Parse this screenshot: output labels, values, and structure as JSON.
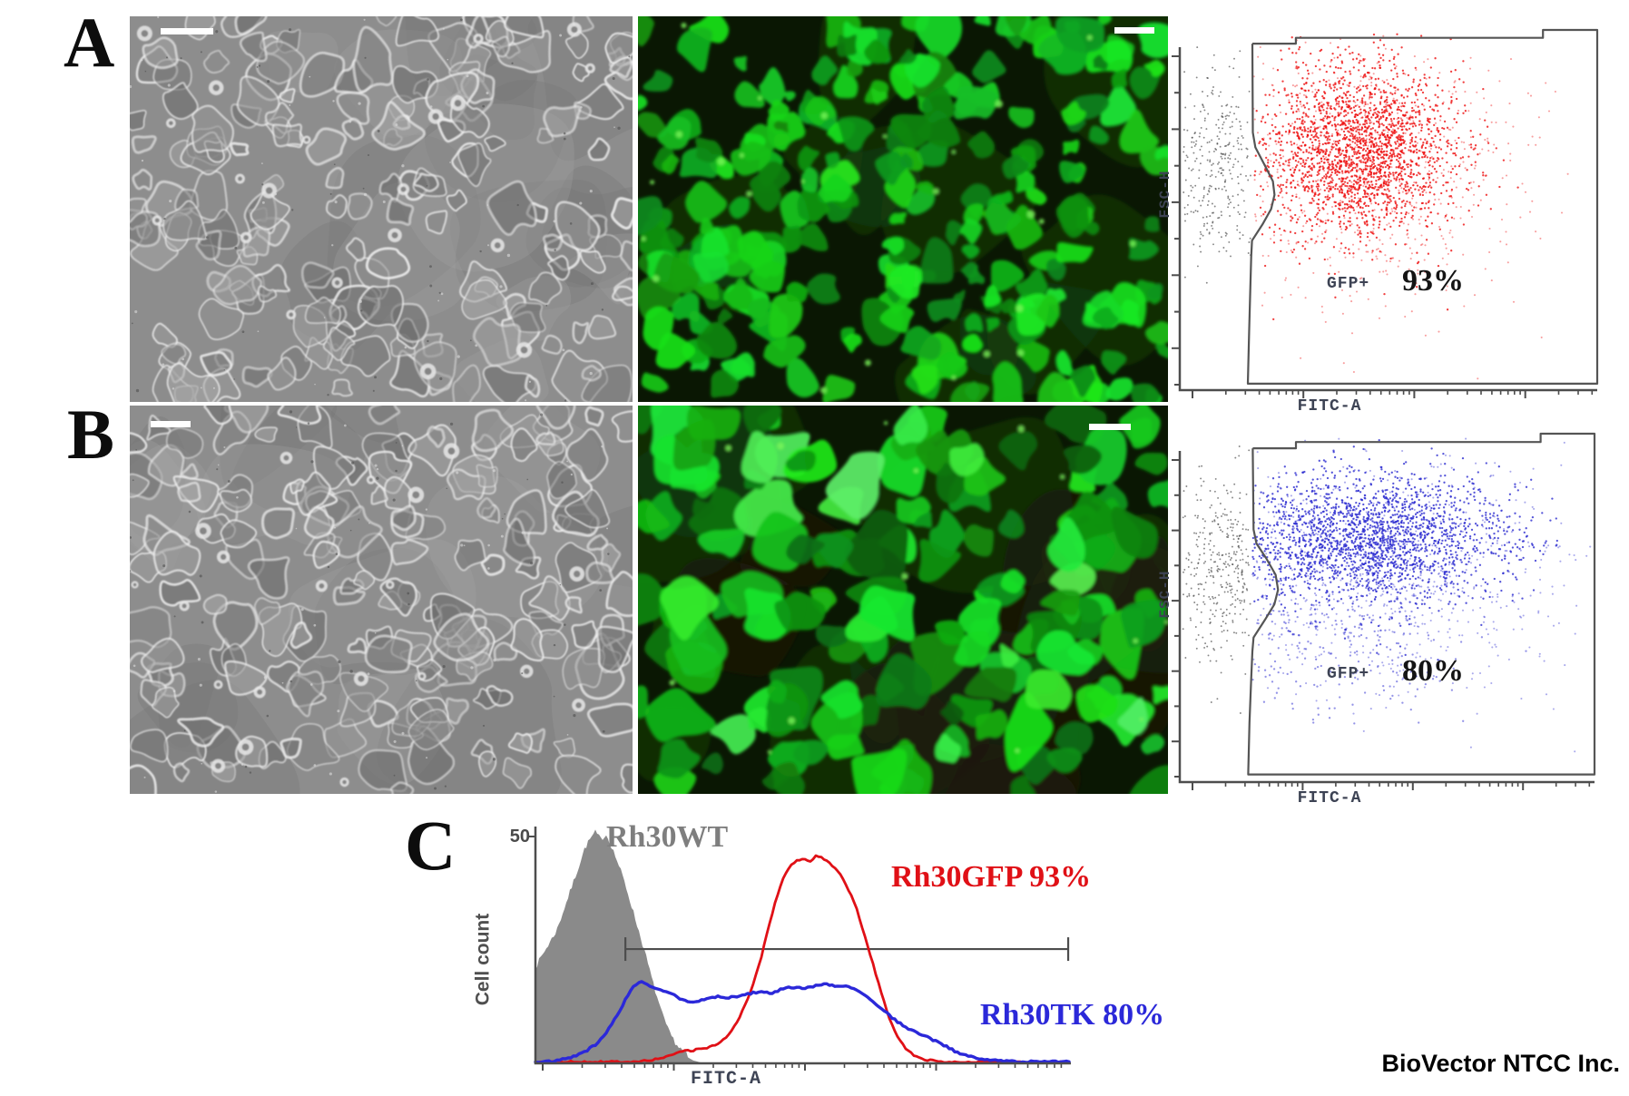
{
  "figure": {
    "panel_a_label": "A",
    "panel_b_label": "B",
    "panel_c_label": "C",
    "watermark": "BioVector NTCC Inc."
  },
  "microscopy": [
    {
      "panel": "A",
      "type": "phase-contrast",
      "scale_bar": true,
      "seed": 11
    },
    {
      "panel": "A",
      "type": "gfp-fluorescence",
      "density": "high",
      "scale_bar": true,
      "seed": 21
    },
    {
      "panel": "B",
      "type": "phase-contrast",
      "scale_bar": true,
      "seed": 31
    },
    {
      "panel": "B",
      "type": "gfp-fluorescence",
      "density": "medium",
      "scale_bar": true,
      "seed": 41
    }
  ],
  "flow": {
    "y_label": "FSC-H",
    "x_label": "FITC-A",
    "gate_label": "GFP+",
    "plots": [
      {
        "panel": "A",
        "percent": "93%"
      },
      {
        "panel": "B",
        "percent": "80%"
      }
    ]
  },
  "histogram": {
    "y_top_tick": "50",
    "y_label": "Cell count",
    "x_label": "FITC-A",
    "legend": [
      {
        "text": "Rh30WT",
        "color": "#7e7e7e"
      },
      {
        "text": "Rh30GFP 93%",
        "color": "#e01016"
      },
      {
        "text": "Rh30TK 80%",
        "color": "#2b28d9"
      }
    ]
  },
  "chart_data": [
    {
      "type": "scatter",
      "panel": "A",
      "xlabel": "FITC-A",
      "ylabel": "FSC-H",
      "x_scale": "log",
      "gate": {
        "label": "GFP+",
        "percent": 93
      },
      "gate_path": [
        [
          0.174,
          0.038
        ],
        [
          0.278,
          0.038
        ],
        [
          0.278,
          0.022
        ],
        [
          0.87,
          0.022
        ],
        [
          0.87,
          0.0
        ],
        [
          1.0,
          0.0
        ],
        [
          1.0,
          0.982
        ],
        [
          0.163,
          0.982
        ],
        [
          0.166,
          0.84
        ],
        [
          0.169,
          0.72
        ],
        [
          0.171,
          0.63
        ],
        [
          0.173,
          0.585
        ],
        [
          0.198,
          0.54
        ],
        [
          0.219,
          0.497
        ],
        [
          0.227,
          0.458
        ],
        [
          0.223,
          0.42
        ],
        [
          0.202,
          0.372
        ],
        [
          0.181,
          0.326
        ],
        [
          0.175,
          0.285
        ],
        [
          0.174,
          0.038
        ]
      ],
      "populations": [
        {
          "name": "ungated",
          "color": "#474747",
          "center": [
            0.085,
            0.38
          ],
          "spread": [
            0.06,
            0.14
          ],
          "n": 380
        },
        {
          "name": "gfp-positive-sparse",
          "color": "#ee0f0f",
          "center": [
            0.46,
            0.38
          ],
          "spread": [
            0.19,
            0.2
          ],
          "n": 700
        },
        {
          "name": "gfp-positive",
          "color": "#ee0f0f",
          "center": [
            0.43,
            0.33
          ],
          "spread": [
            0.115,
            0.12
          ],
          "n": 2200
        }
      ]
    },
    {
      "type": "scatter",
      "panel": "B",
      "xlabel": "FITC-A",
      "ylabel": "FSC-H",
      "x_scale": "log",
      "gate": {
        "label": "GFP+",
        "percent": 80
      },
      "gate_path": [
        [
          0.176,
          0.042
        ],
        [
          0.28,
          0.042
        ],
        [
          0.28,
          0.024
        ],
        [
          0.87,
          0.024
        ],
        [
          0.87,
          0.0
        ],
        [
          1.0,
          0.0
        ],
        [
          1.0,
          0.978
        ],
        [
          0.165,
          0.978
        ],
        [
          0.168,
          0.83
        ],
        [
          0.172,
          0.71
        ],
        [
          0.175,
          0.625
        ],
        [
          0.178,
          0.585
        ],
        [
          0.205,
          0.535
        ],
        [
          0.228,
          0.49
        ],
        [
          0.237,
          0.448
        ],
        [
          0.231,
          0.405
        ],
        [
          0.208,
          0.357
        ],
        [
          0.185,
          0.315
        ],
        [
          0.178,
          0.275
        ],
        [
          0.176,
          0.042
        ]
      ],
      "populations": [
        {
          "name": "ungated",
          "color": "#474747",
          "center": [
            0.1,
            0.4
          ],
          "spread": [
            0.065,
            0.12
          ],
          "n": 420
        },
        {
          "name": "gfp-positive-sparse",
          "color": "#2a2ad0",
          "center": [
            0.48,
            0.4
          ],
          "spread": [
            0.24,
            0.17
          ],
          "n": 800
        },
        {
          "name": "gfp-positive-low",
          "color": "#2a2ad0",
          "center": [
            0.38,
            0.62
          ],
          "spread": [
            0.18,
            0.1
          ],
          "n": 250
        },
        {
          "name": "gfp-positive",
          "color": "#2a2ad0",
          "center": [
            0.45,
            0.3
          ],
          "spread": [
            0.17,
            0.095
          ],
          "n": 2200
        }
      ]
    },
    {
      "type": "histogram-overlay",
      "panel": "C",
      "xlabel": "FITC-A",
      "ylabel": "Cell count",
      "x_scale": "log",
      "ylim": [
        0,
        50
      ],
      "marker": {
        "from": 0.168,
        "to": 0.995,
        "level": 24.5
      },
      "series": [
        {
          "name": "Rh30WT",
          "color": "#8a8a8a",
          "fill": true,
          "points": [
            [
              0,
              20
            ],
            [
              0.012,
              22.5
            ],
            [
              0.025,
              25
            ],
            [
              0.04,
              28
            ],
            [
              0.055,
              33
            ],
            [
              0.07,
              38
            ],
            [
              0.082,
              42
            ],
            [
              0.092,
              45.5
            ],
            [
              0.102,
              47.5
            ],
            [
              0.112,
              49
            ],
            [
              0.122,
              47.5
            ],
            [
              0.132,
              48.5
            ],
            [
              0.142,
              46
            ],
            [
              0.152,
              43
            ],
            [
              0.163,
              39.5
            ],
            [
              0.175,
              35
            ],
            [
              0.19,
              29
            ],
            [
              0.205,
              23
            ],
            [
              0.22,
              16.5
            ],
            [
              0.235,
              10.5
            ],
            [
              0.25,
              6
            ],
            [
              0.265,
              3.2
            ],
            [
              0.28,
              1.6
            ],
            [
              0.295,
              0.6
            ],
            [
              0.31,
              0.15
            ],
            [
              0.33,
              0
            ]
          ]
        },
        {
          "name": "Rh30GFP",
          "percent": 93,
          "color": "#e01016",
          "fill": false,
          "points": [
            [
              0,
              0.3
            ],
            [
              0.17,
              0.35
            ],
            [
              0.21,
              0.6
            ],
            [
              0.24,
              1.2
            ],
            [
              0.26,
              2
            ],
            [
              0.28,
              2.6
            ],
            [
              0.3,
              2.9
            ],
            [
              0.32,
              3.3
            ],
            [
              0.34,
              4.2
            ],
            [
              0.36,
              6
            ],
            [
              0.375,
              8.5
            ],
            [
              0.39,
              12
            ],
            [
              0.405,
              16.5
            ],
            [
              0.42,
              22
            ],
            [
              0.435,
              29
            ],
            [
              0.45,
              35.5
            ],
            [
              0.462,
              39.5
            ],
            [
              0.474,
              42
            ],
            [
              0.486,
              43.5
            ],
            [
              0.5,
              44
            ],
            [
              0.512,
              43.2
            ],
            [
              0.524,
              44.6
            ],
            [
              0.536,
              44
            ],
            [
              0.55,
              43
            ],
            [
              0.562,
              41.5
            ],
            [
              0.575,
              39.5
            ],
            [
              0.588,
              36.5
            ],
            [
              0.6,
              33
            ],
            [
              0.615,
              27.5
            ],
            [
              0.63,
              21.5
            ],
            [
              0.645,
              15.5
            ],
            [
              0.66,
              10
            ],
            [
              0.675,
              6
            ],
            [
              0.69,
              3.4
            ],
            [
              0.705,
              1.8
            ],
            [
              0.725,
              0.9
            ],
            [
              0.75,
              0.4
            ],
            [
              0.79,
              0.25
            ],
            [
              0.85,
              0.2
            ],
            [
              1,
              0.2
            ]
          ]
        },
        {
          "name": "Rh30TK",
          "percent": 80,
          "color": "#2b28d9",
          "fill": false,
          "points": [
            [
              0,
              0.2
            ],
            [
              0.03,
              0.4
            ],
            [
              0.05,
              0.8
            ],
            [
              0.07,
              1.4
            ],
            [
              0.09,
              2.3
            ],
            [
              0.11,
              3.8
            ],
            [
              0.13,
              6.2
            ],
            [
              0.145,
              8.8
            ],
            [
              0.157,
              11.2
            ],
            [
              0.168,
              13.6
            ],
            [
              0.178,
              15.6
            ],
            [
              0.188,
              17
            ],
            [
              0.198,
              17.4
            ],
            [
              0.21,
              16.8
            ],
            [
              0.225,
              16.2
            ],
            [
              0.24,
              15.6
            ],
            [
              0.255,
              15
            ],
            [
              0.27,
              13.8
            ],
            [
              0.285,
              13.2
            ],
            [
              0.3,
              13.2
            ],
            [
              0.32,
              13.9
            ],
            [
              0.34,
              14.3
            ],
            [
              0.36,
              14
            ],
            [
              0.38,
              14.5
            ],
            [
              0.4,
              15
            ],
            [
              0.42,
              15.3
            ],
            [
              0.44,
              15.1
            ],
            [
              0.46,
              15.9
            ],
            [
              0.48,
              16.3
            ],
            [
              0.5,
              16
            ],
            [
              0.52,
              16.6
            ],
            [
              0.54,
              17
            ],
            [
              0.56,
              16.5
            ],
            [
              0.58,
              16.7
            ],
            [
              0.6,
              15.8
            ],
            [
              0.62,
              14.3
            ],
            [
              0.64,
              12.4
            ],
            [
              0.66,
              10.4
            ],
            [
              0.68,
              8.6
            ],
            [
              0.7,
              7.2
            ],
            [
              0.72,
              6.2
            ],
            [
              0.74,
              5.2
            ],
            [
              0.76,
              4
            ],
            [
              0.78,
              2.8
            ],
            [
              0.8,
              1.9
            ],
            [
              0.825,
              1.1
            ],
            [
              0.855,
              0.6
            ],
            [
              0.89,
              0.4
            ],
            [
              0.93,
              0.3
            ],
            [
              1,
              0.3
            ]
          ]
        }
      ]
    }
  ]
}
